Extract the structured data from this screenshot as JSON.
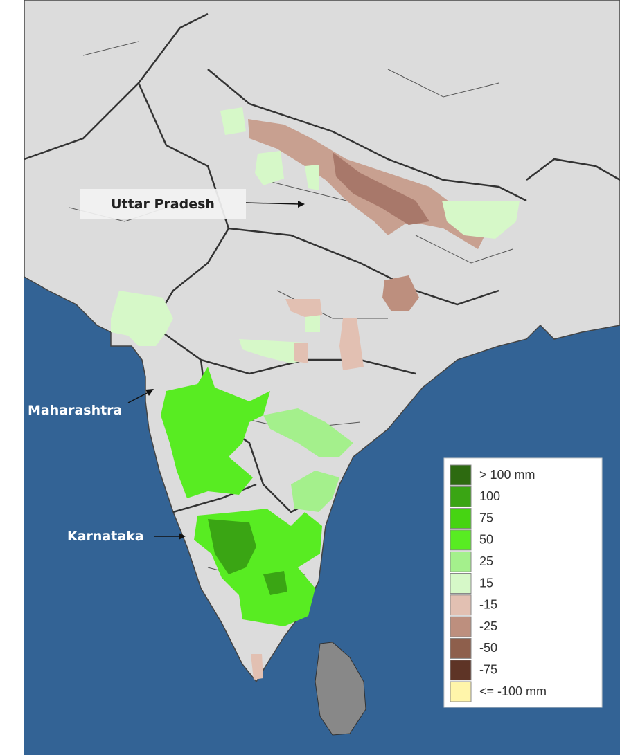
{
  "annotations": [
    {
      "text": "Uttar Pradesh"
    },
    {
      "text": "Maharashtra"
    },
    {
      "text": "Karnataka"
    }
  ],
  "legend": {
    "items": [
      {
        "label": "> 100 mm",
        "color": "#2d6a10"
      },
      {
        "label": "100",
        "color": "#3aa514"
      },
      {
        "label": "75",
        "color": "#46d412"
      },
      {
        "label": "50",
        "color": "#58ec22"
      },
      {
        "label": "25",
        "color": "#a4f08c"
      },
      {
        "label": "15",
        "color": "#d6f8c8"
      },
      {
        "label": "-15",
        "color": "#e2c0b2"
      },
      {
        "label": "-25",
        "color": "#bd8f7e"
      },
      {
        "label": "-50",
        "color": "#8e5f4c"
      },
      {
        "label": "-75",
        "color": "#5e3426"
      },
      {
        "label": "<= -100 mm",
        "color": "#fff5aa"
      }
    ]
  }
}
